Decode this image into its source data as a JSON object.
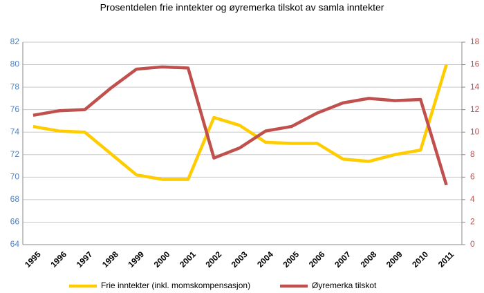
{
  "chart_data": {
    "type": "line",
    "title": "Prosentdelen frie inntekter og øyremerka tilskot av samla inntekter",
    "categories": [
      "1995",
      "1996",
      "1997",
      "1998",
      "1999",
      "2000",
      "2001",
      "2002",
      "2003",
      "2004",
      "2005",
      "2006",
      "2007",
      "2008",
      "2009",
      "2010",
      "2011"
    ],
    "series": [
      {
        "name": "Frie inntekter (inkl. momskompensasjon)",
        "color": "#ffcc00",
        "axis": "y",
        "values": [
          74.5,
          74.1,
          74.0,
          72.1,
          70.2,
          69.8,
          69.8,
          75.3,
          74.6,
          73.1,
          73.0,
          73.0,
          71.6,
          71.4,
          72.0,
          72.4,
          80.0
        ]
      },
      {
        "name": "Øyremerka tilskot",
        "color": "#c0504d",
        "axis": "y2",
        "values": [
          11.5,
          11.9,
          12.0,
          13.9,
          15.6,
          15.8,
          15.7,
          7.7,
          8.6,
          10.1,
          10.5,
          11.7,
          12.6,
          13.0,
          12.8,
          12.9,
          5.3
        ]
      }
    ],
    "ylim": [
      64,
      82
    ],
    "yticks": [
      64,
      66,
      68,
      70,
      72,
      74,
      76,
      78,
      80,
      82
    ],
    "y2lim": [
      0,
      18
    ],
    "y2ticks": [
      0,
      2,
      4,
      6,
      8,
      10,
      12,
      14,
      16,
      18
    ],
    "grid": true,
    "legend": "bottom"
  }
}
